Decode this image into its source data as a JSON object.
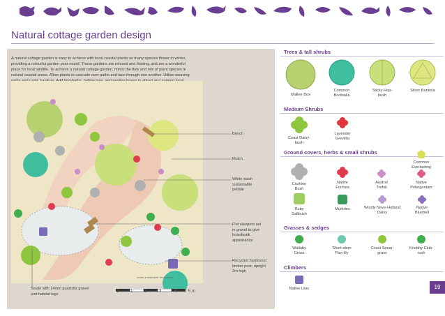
{
  "title": "Natural cottage garden design",
  "intro": "A natural cottage garden is easy to achieve with local coastal plants as many species flower in winter, providing a colourful garden year-round. These gardens are relaxed and flowing, and are a wonderful place for local wildlife. To achieve a natural cottage garden, mimic the flow and mix of plant species in natural coastal areas. Allow plants to cascade over paths and lace through one another. Utilise weaving paths and rustic furniture. Add bird-baths, hollow logs, and nesting boxes to attract and support local wildlife.",
  "plan_labels": {
    "bench": "Bench",
    "mulch": "Mulch",
    "pebble": "White wash sustainable pebble",
    "sleepers": "Flat sleepers set in gravel to give boardwalk appearance",
    "timber": "Recycled hardwood timber post, upright 2m high",
    "swale": "Swale with 14mm quartzite gravel and habitat logs",
    "watermark": "urban sustainable landscapes"
  },
  "scale": {
    "ticks": [
      "0",
      "1",
      "2",
      "3",
      "4",
      "5 m"
    ]
  },
  "sections": {
    "trees": {
      "heading": "Trees & tall shrubs",
      "plants": [
        {
          "name": "Mallee Box",
          "color": "#b8d170"
        },
        {
          "name": "Common Boobialla",
          "color": "#3fbf9f"
        },
        {
          "name": "Sticky Hop-bush",
          "color": "#c9df7a"
        },
        {
          "name": "Silver Banksia",
          "color": "#dde680"
        }
      ]
    },
    "medium": {
      "heading": "Medium Shrubs",
      "plants": [
        {
          "name": "Coast Daisy-bush",
          "color": "#8ec63f"
        },
        {
          "name": "Lavender Grevillia",
          "color": "#e0343e"
        }
      ]
    },
    "ground": {
      "heading": "Ground covers, herbs & small shrubs",
      "plants": [
        {
          "name": "Common Everlasting",
          "color": "#d8de5a"
        },
        {
          "name": "Cushion Bush",
          "color": "#b0b0b0"
        },
        {
          "name": "Native Fuchsia",
          "color": "#e03a4f"
        },
        {
          "name": "Austral Trefoil",
          "color": "#c98ec9"
        },
        {
          "name": "Native Pelargonium",
          "color": "#e05a8a"
        },
        {
          "name": "Ruby Saltbush",
          "color": "#9fcf60"
        },
        {
          "name": "Muntries",
          "color": "#3a9a5a"
        },
        {
          "name": "Woolly Neve-Holland Daisy",
          "color": "#b49ad0"
        },
        {
          "name": "Native Bluebell",
          "color": "#8a6fc0"
        }
      ]
    },
    "grasses": {
      "heading": "Grasses & sedges",
      "plants": [
        {
          "name": "Wallaby Grass",
          "color": "#3fae4f"
        },
        {
          "name": "Short-stem Flax-lily",
          "color": "#6dc9b0"
        },
        {
          "name": "Coast Spear-grass",
          "color": "#8ec63f"
        },
        {
          "name": "Knobby Club-rush",
          "color": "#3fae4f"
        }
      ]
    },
    "climbers": {
      "heading": "Climbers",
      "plants": [
        {
          "name": "Native Lilac",
          "color": "#7a6bb8"
        }
      ]
    }
  },
  "page_number": "19",
  "colors": {
    "accent": "#6a3f92",
    "panel": "#ddd7cf"
  }
}
